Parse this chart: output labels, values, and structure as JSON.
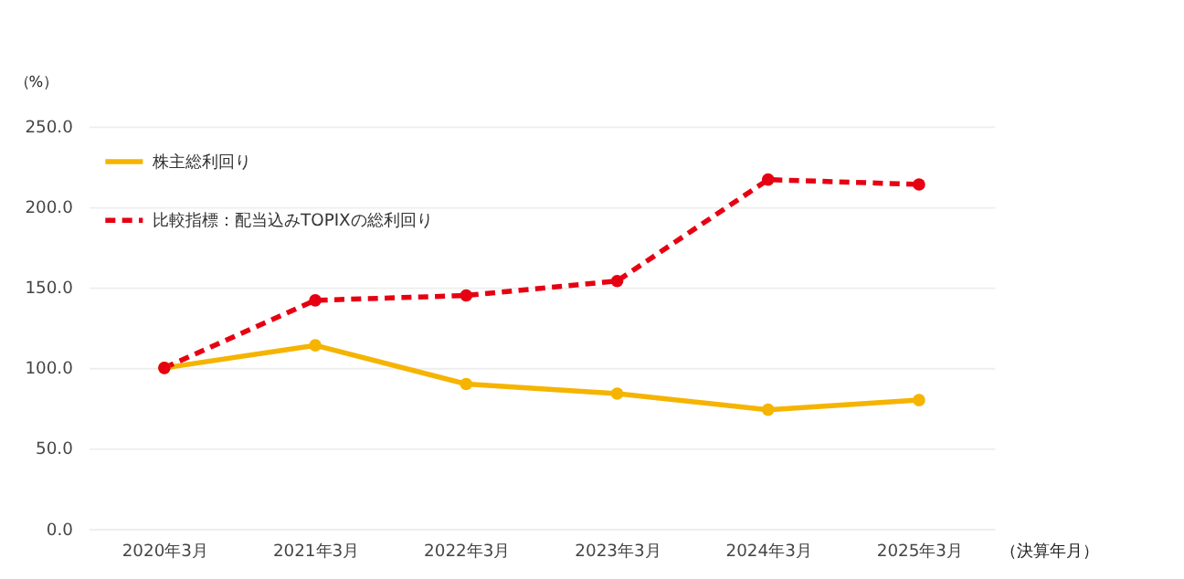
{
  "chart_data": {
    "type": "line",
    "ylabel": "（%）",
    "xlabel": "（決算年月）",
    "categories": [
      "2020年3月",
      "2021年3月",
      "2022年3月",
      "2023年3月",
      "2024年3月",
      "2025年3月"
    ],
    "series": [
      {
        "name": "株主総利回り",
        "color": "#f5b400",
        "line_style": "solid",
        "values": [
          100,
          114,
          90,
          84,
          74,
          80
        ]
      },
      {
        "name": "比較指標：配当込みTOPIXの総利回り",
        "color": "#e60012",
        "line_style": "dashed",
        "values": [
          100,
          142,
          145,
          154,
          217,
          214
        ]
      }
    ],
    "ylim": [
      0,
      250
    ],
    "yticks": [
      {
        "value": 0,
        "label": "0.0"
      },
      {
        "value": 50,
        "label": "50.0"
      },
      {
        "value": 100,
        "label": "100.0"
      },
      {
        "value": 150,
        "label": "150.0"
      },
      {
        "value": 200,
        "label": "200.0"
      },
      {
        "value": 250,
        "label": "250.0"
      }
    ],
    "grid": "y",
    "legend": "top left",
    "marker": "circle"
  }
}
